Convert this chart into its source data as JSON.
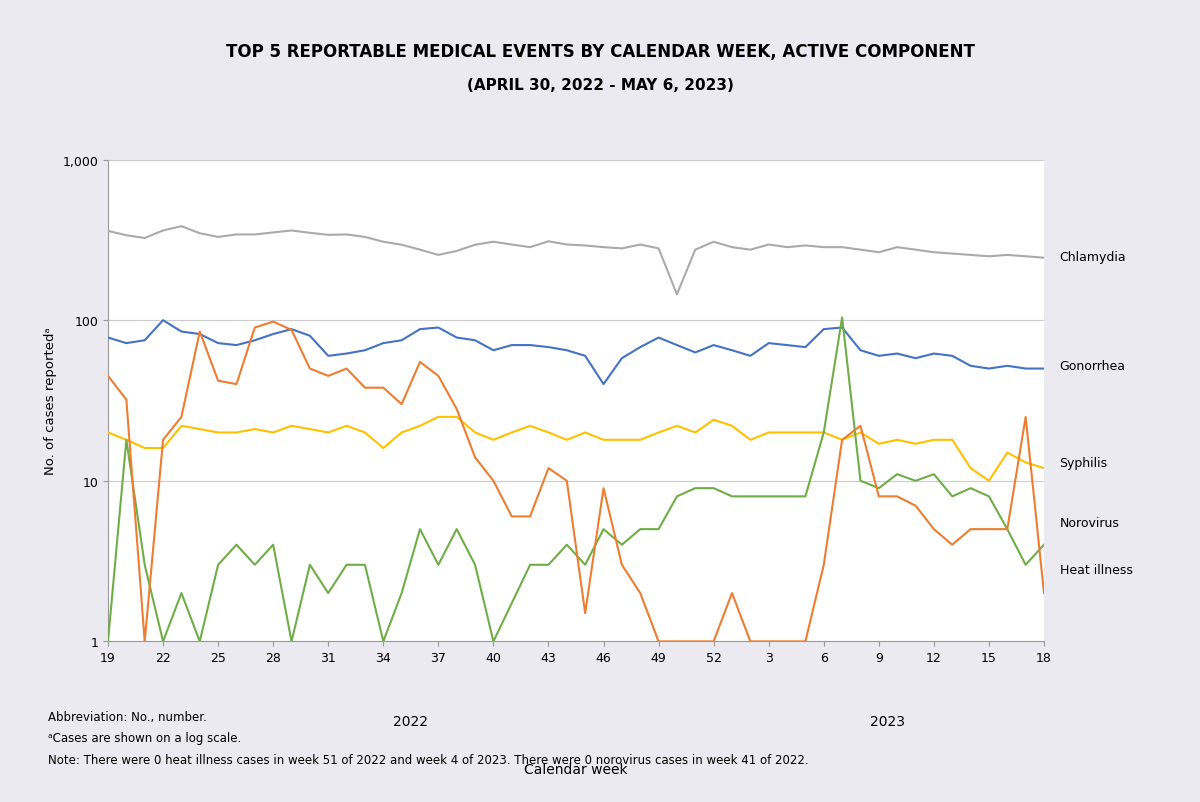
{
  "title1": "TOP 5 REPORTABLE MEDICAL EVENTS BY CALENDAR WEEK, ACTIVE COMPONENT",
  "title2": "(APRIL 30, 2022 - MAY 6, 2023)",
  "xlabel": "Calendar week",
  "ylabel": "No. of cases reportedᵃ",
  "fig_bg": "#eaeaf0",
  "plot_bg": "#ffffff",
  "footnote1": "Abbreviation: No., number.",
  "footnote2": "ᵃCases are shown on a log scale.",
  "footnote3": "Note: There were 0 heat illness cases in week 51 of 2022 and week 4 of 2023. There were 0 norovirus cases in week 41 of 2022.",
  "chlamydia_color": "#aaaaaa",
  "gonorrhea_color": "#4472c4",
  "syphilis_color": "#ffc000",
  "norovirus_color": "#70ad47",
  "heat_color": "#ed7d31",
  "chlamydia_x": [
    19,
    20,
    21,
    22,
    23,
    24,
    25,
    26,
    27,
    28,
    29,
    30,
    31,
    32,
    33,
    34,
    35,
    36,
    37,
    38,
    39,
    40,
    41,
    42,
    43,
    44,
    45,
    46,
    47,
    48,
    49,
    50,
    51,
    52,
    53,
    54,
    55,
    56,
    57,
    58,
    59,
    60,
    61,
    62,
    63,
    64,
    65,
    66,
    67,
    68,
    69,
    70
  ],
  "chlamydia_y": [
    360,
    338,
    325,
    362,
    385,
    348,
    330,
    342,
    342,
    352,
    362,
    350,
    340,
    342,
    330,
    308,
    295,
    275,
    255,
    270,
    295,
    308,
    296,
    285,
    310,
    296,
    292,
    285,
    280,
    296,
    280,
    145,
    275,
    308,
    285,
    275,
    296,
    285,
    292,
    285,
    285,
    275,
    265,
    285,
    275,
    265,
    260,
    255,
    250,
    255,
    250,
    245
  ],
  "gonorrhea_x": [
    19,
    20,
    21,
    22,
    23,
    24,
    25,
    26,
    27,
    28,
    29,
    30,
    31,
    32,
    33,
    34,
    35,
    36,
    37,
    38,
    39,
    40,
    41,
    42,
    43,
    44,
    45,
    46,
    47,
    48,
    49,
    50,
    51,
    52,
    53,
    54,
    55,
    56,
    57,
    58,
    59,
    60,
    61,
    62,
    63,
    64,
    65,
    66,
    67,
    68,
    69,
    70
  ],
  "gonorrhea_y": [
    78,
    72,
    75,
    100,
    85,
    82,
    72,
    70,
    75,
    82,
    88,
    80,
    60,
    62,
    65,
    72,
    75,
    88,
    90,
    78,
    75,
    65,
    70,
    70,
    68,
    65,
    60,
    40,
    58,
    68,
    78,
    70,
    63,
    70,
    65,
    60,
    72,
    70,
    68,
    88,
    90,
    65,
    60,
    62,
    58,
    62,
    60,
    52,
    50,
    52,
    50,
    50
  ],
  "syphilis_x": [
    19,
    20,
    21,
    22,
    23,
    24,
    25,
    26,
    27,
    28,
    29,
    30,
    31,
    32,
    33,
    34,
    35,
    36,
    37,
    38,
    39,
    40,
    41,
    42,
    43,
    44,
    45,
    46,
    47,
    48,
    49,
    50,
    51,
    52,
    53,
    54,
    55,
    56,
    57,
    58,
    59,
    60,
    61,
    62,
    63,
    64,
    65,
    66,
    67,
    68,
    69,
    70
  ],
  "syphilis_y": [
    20,
    18,
    16,
    16,
    22,
    21,
    20,
    20,
    21,
    20,
    22,
    21,
    20,
    22,
    20,
    16,
    20,
    22,
    25,
    25,
    20,
    18,
    20,
    22,
    20,
    18,
    20,
    18,
    18,
    18,
    20,
    22,
    20,
    24,
    22,
    18,
    20,
    20,
    20,
    20,
    18,
    20,
    17,
    18,
    17,
    18,
    18,
    12,
    10,
    15,
    13,
    12
  ],
  "norovirus_x": [
    19,
    20,
    21,
    22,
    23,
    24,
    25,
    26,
    27,
    28,
    29,
    30,
    31,
    32,
    33,
    34,
    35,
    36,
    37,
    38,
    39,
    40,
    42,
    43,
    44,
    45,
    46,
    47,
    48,
    49,
    50,
    51,
    52,
    53,
    54,
    55,
    56,
    57,
    58,
    59,
    60,
    61,
    62,
    63,
    64,
    65,
    66,
    67,
    68,
    69,
    70
  ],
  "norovirus_y": [
    1,
    18,
    3,
    1,
    2,
    1,
    3,
    4,
    3,
    4,
    1,
    3,
    2,
    3,
    3,
    1,
    2,
    5,
    3,
    5,
    3,
    1,
    3,
    3,
    4,
    3,
    5,
    4,
    5,
    5,
    8,
    9,
    9,
    8,
    8,
    8,
    8,
    8,
    20,
    104,
    10,
    9,
    11,
    10,
    11,
    8,
    9,
    8,
    5,
    3,
    4
  ],
  "heat_x": [
    19,
    20,
    21,
    22,
    23,
    24,
    25,
    26,
    27,
    28,
    29,
    30,
    31,
    32,
    33,
    34,
    35,
    36,
    37,
    38,
    39,
    40,
    41,
    42,
    43,
    44,
    45,
    46,
    47,
    48,
    49,
    50,
    52,
    53,
    54,
    55,
    57,
    58,
    59,
    60,
    61,
    62,
    63,
    64,
    65,
    66,
    67,
    68,
    69,
    70
  ],
  "heat_y": [
    45,
    32,
    1,
    18,
    25,
    85,
    42,
    40,
    90,
    98,
    87,
    50,
    45,
    50,
    38,
    38,
    30,
    55,
    45,
    28,
    14,
    10,
    6,
    6,
    12,
    10,
    1.5,
    9,
    3,
    2,
    1,
    1,
    1,
    2,
    1,
    1,
    1,
    3,
    18,
    22,
    8,
    8,
    7,
    5,
    4,
    5,
    5,
    5,
    25,
    2
  ],
  "x_tick_positions": [
    19,
    22,
    25,
    28,
    31,
    34,
    37,
    40,
    43,
    46,
    49,
    52,
    55,
    58,
    61,
    64,
    67,
    70
  ],
  "x_tick_labels": [
    "19",
    "22",
    "25",
    "28",
    "31",
    "34",
    "37",
    "40",
    "43",
    "46",
    "49",
    "52",
    "3",
    "6",
    "9",
    "12",
    "15",
    "18"
  ]
}
